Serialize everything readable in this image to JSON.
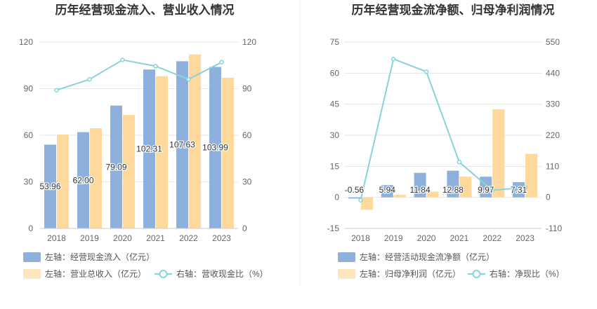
{
  "chart_data": [
    {
      "type": "bar",
      "title": "历年经营现金流入、营业收入情况",
      "categories": [
        "2018",
        "2019",
        "2020",
        "2021",
        "2022",
        "2023"
      ],
      "left_axis": {
        "ticks": [
          "0",
          "30",
          "60",
          "90",
          "120"
        ],
        "ylim": [
          0,
          120
        ]
      },
      "right_axis": {
        "ticks": [
          "0",
          "30",
          "60",
          "90",
          "120"
        ],
        "ylim": [
          0,
          120
        ]
      },
      "series": [
        {
          "name": "左轴：经营现金流入（亿元）",
          "type": "bar",
          "axis": "left",
          "color": "#8eb0dd",
          "values": [
            53.96,
            62.0,
            79.09,
            102.31,
            107.63,
            103.99
          ],
          "labels": [
            "53.96",
            "62.00",
            "79.09",
            "102.31",
            "107.63",
            "103.99"
          ]
        },
        {
          "name": "左轴：营业总收入（亿元）",
          "type": "bar",
          "axis": "left",
          "color": "#ffd99b",
          "values": [
            60.5,
            64.5,
            73,
            98,
            112,
            97
          ]
        },
        {
          "name": "右轴：营收现金比（%）",
          "type": "line",
          "axis": "right",
          "color": "#86d4da",
          "values": [
            89,
            96,
            108.5,
            104.5,
            96,
            107
          ]
        }
      ]
    },
    {
      "type": "bar",
      "title": "历年经营现金流净额、归母净利润情况",
      "categories": [
        "2018",
        "2019",
        "2020",
        "2021",
        "2022",
        "2023"
      ],
      "left_axis": {
        "ticks": [
          "-15",
          "0",
          "15",
          "30",
          "45",
          "60",
          "75"
        ],
        "ylim": [
          -15,
          75
        ]
      },
      "right_axis": {
        "ticks": [
          "-110",
          "0",
          "110",
          "220",
          "330",
          "440",
          "550"
        ],
        "ylim": [
          -110,
          550
        ]
      },
      "series": [
        {
          "name": "左轴：经营活动现金流净额（亿元）",
          "type": "bar",
          "axis": "left",
          "color": "#8eb0dd",
          "values": [
            -0.56,
            5.94,
            11.84,
            12.88,
            9.97,
            7.31
          ],
          "labels": [
            "-0.56",
            "5.94",
            "11.84",
            "12.88",
            "9.97",
            "7.31"
          ]
        },
        {
          "name": "左轴：归母净利润（亿元）",
          "type": "bar",
          "axis": "left",
          "color": "#ffd99b",
          "values": [
            -6,
            1.2,
            2.8,
            10,
            42.5,
            21
          ]
        },
        {
          "name": "右轴：净现比（%）",
          "type": "line",
          "axis": "right",
          "color": "#86d4da",
          "values": [
            -10,
            490,
            445,
            125,
            25,
            35
          ]
        }
      ]
    }
  ]
}
